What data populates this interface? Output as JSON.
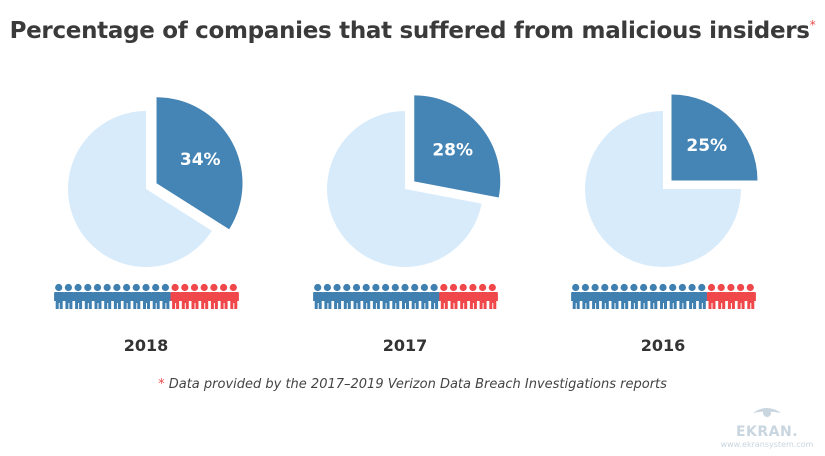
{
  "title": "Percentage of companies that suffered from malicious insiders",
  "title_marker": "*",
  "footnote": {
    "marker": "*",
    "text": "Data provided by the 2017–2019 Verizon Data Breach Investigations reports"
  },
  "logo": {
    "name": "EKRAN.",
    "url": "www.ekransystem.com",
    "icon": "eye-icon"
  },
  "colors": {
    "slice": "#4585b5",
    "rest": "#d8ebfb",
    "people_blue": "#3f80b0",
    "people_red": "#f0474b"
  },
  "chart_data": {
    "type": "pie",
    "title": "Percentage of companies that suffered from malicious insiders",
    "charts": [
      {
        "label": "2018",
        "value": 34,
        "value_label": "34%",
        "people_blue": 12,
        "people_red": 7
      },
      {
        "label": "2017",
        "value": 28,
        "value_label": "28%",
        "people_blue": 13,
        "people_red": 6
      },
      {
        "label": "2016",
        "value": 25,
        "value_label": "25%",
        "people_blue": 14,
        "people_red": 5
      }
    ]
  }
}
